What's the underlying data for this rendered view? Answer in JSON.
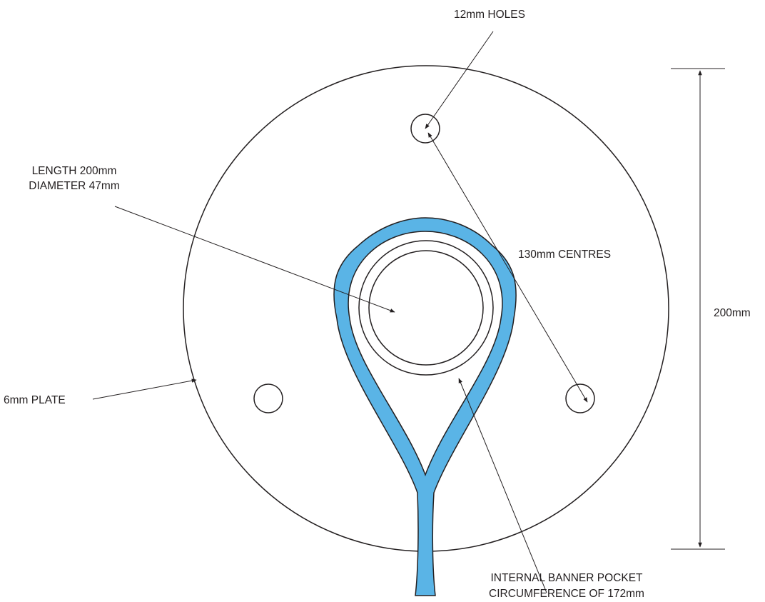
{
  "labels": {
    "holes": "12mm HOLES",
    "length": "LENGTH 200mm",
    "diameter": "DIAMETER 47mm",
    "centres": "130mm CENTRES",
    "height": "200mm",
    "plate": "6mm PLATE",
    "pocket_line1": "INTERNAL BANNER POCKET",
    "pocket_line2": "CIRCUMFERENCE OF 172mm"
  },
  "colors": {
    "line": "#231f20",
    "pocket_fill": "#5ab4e6",
    "background": "#ffffff"
  }
}
